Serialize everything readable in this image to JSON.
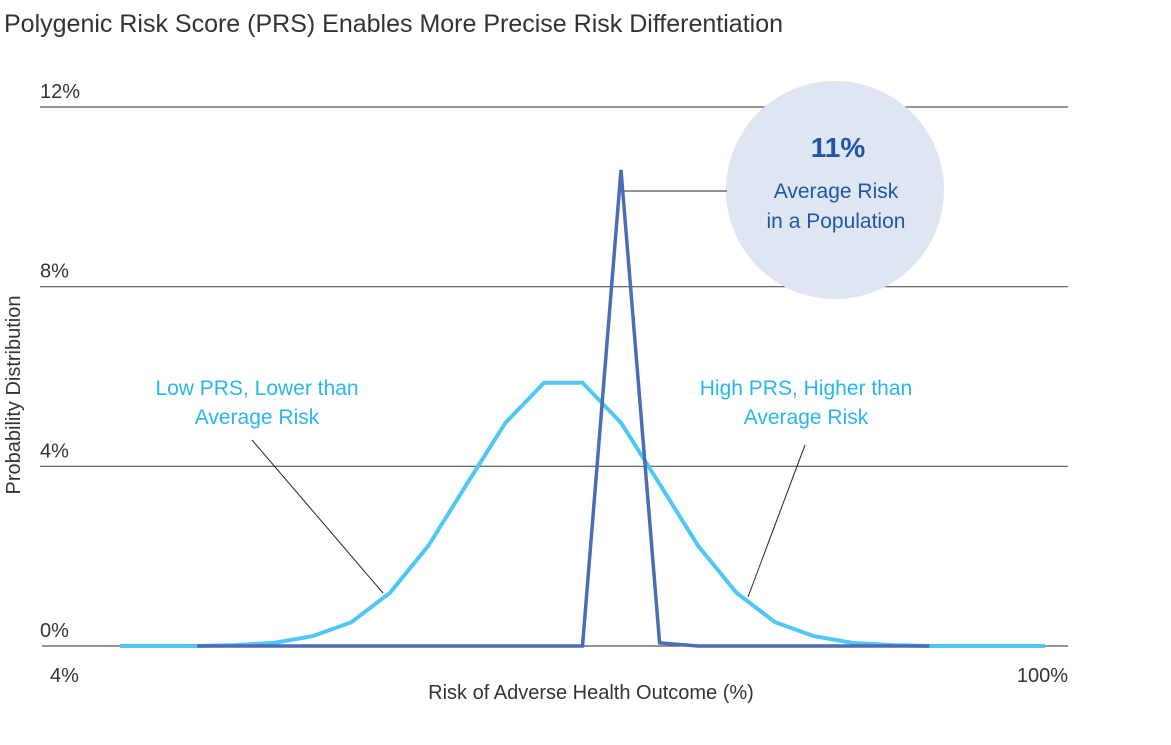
{
  "chart_data": {
    "type": "line",
    "title": "Polygenic Risk Score (PRS) Enables More Precise Risk Differentiation",
    "xlabel": "Risk of Adverse Health Outcome (%)",
    "ylabel": "Probability Distribution",
    "x_tick_labels": [
      "4%",
      "100%"
    ],
    "y_tick_labels": [
      "0%",
      "4%",
      "8%",
      "12%"
    ],
    "xlim": [
      4,
      100
    ],
    "ylim": [
      0,
      12
    ],
    "grid": "horizontal",
    "series": [
      {
        "color": "#4fc8f5",
        "x": [
          4,
          8,
          12,
          16,
          20,
          24,
          28,
          32,
          36,
          40,
          44,
          48,
          52,
          56,
          60,
          64,
          68,
          72,
          76,
          80,
          84,
          88,
          92,
          96,
          100
        ],
        "values": [
          0,
          0,
          0,
          0.02,
          0.07,
          0.22,
          0.53,
          1.18,
          2.23,
          3.61,
          4.97,
          5.86,
          5.86,
          4.97,
          3.61,
          2.23,
          1.18,
          0.53,
          0.22,
          0.07,
          0.02,
          0,
          0,
          0,
          0
        ]
      },
      {
        "color": "#4a6db5",
        "x": [
          12,
          16,
          20,
          24,
          28,
          32,
          36,
          40,
          44,
          48,
          52,
          56,
          60,
          64,
          68,
          72,
          76,
          80,
          84,
          88
        ],
        "values": [
          0,
          0,
          0,
          0,
          0,
          0,
          0,
          0,
          0,
          0,
          0,
          10.6,
          0.07,
          0,
          0,
          0,
          0,
          0,
          0,
          0
        ]
      }
    ],
    "annotations": {
      "low": {
        "line1": "Low PRS, Lower than",
        "line2": "Average Risk",
        "color": "#29b6ee"
      },
      "high": {
        "line1": "High PRS, Higher than",
        "line2": "Average Risk",
        "color": "#29b6ee"
      },
      "average": {
        "value": "11%",
        "line1": "Average Risk",
        "line2": "in a Population",
        "color": "#1f56a8",
        "bubble_color": "#dfe6f2"
      }
    }
  }
}
